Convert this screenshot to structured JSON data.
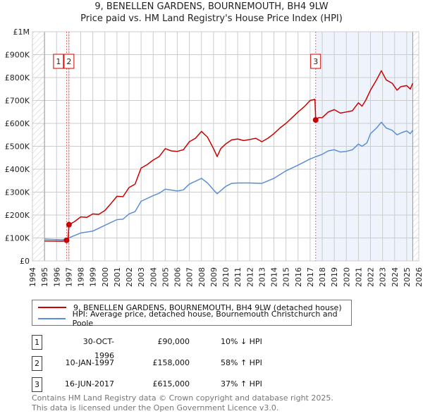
{
  "title_line1": "9, BENELLEN GARDENS, BOURNEMOUTH, BH4 9LW",
  "title_line2": "Price paid vs. HM Land Registry's House Price Index (HPI)",
  "chart_data": {
    "type": "line",
    "xlim": [
      1994,
      2026
    ],
    "ylim": [
      0,
      1000000
    ],
    "grid": true,
    "x_ticks": [
      "1994",
      "1995",
      "1996",
      "1997",
      "1998",
      "1999",
      "2000",
      "2001",
      "2002",
      "2003",
      "2004",
      "2005",
      "2006",
      "2007",
      "2008",
      "2009",
      "2010",
      "2011",
      "2012",
      "2013",
      "2014",
      "2015",
      "2016",
      "2017",
      "2018",
      "2019",
      "2020",
      "2021",
      "2022",
      "2023",
      "2024",
      "2025",
      "2026"
    ],
    "y_ticks": [
      {
        "value": 0,
        "label": "£0"
      },
      {
        "value": 100000,
        "label": "£100K"
      },
      {
        "value": 200000,
        "label": "£200K"
      },
      {
        "value": 300000,
        "label": "£300K"
      },
      {
        "value": 400000,
        "label": "£400K"
      },
      {
        "value": 500000,
        "label": "£500K"
      },
      {
        "value": 600000,
        "label": "£600K"
      },
      {
        "value": 700000,
        "label": "£700K"
      },
      {
        "value": 800000,
        "label": "£800K"
      },
      {
        "value": 900000,
        "label": "£900K"
      },
      {
        "value": 1000000,
        "label": "£1M"
      }
    ],
    "hatched_ranges": [
      [
        1994,
        1995
      ],
      [
        2025.5,
        2026
      ]
    ],
    "shaded_range": [
      2017.46,
      2025.5
    ],
    "series": [
      {
        "name": "9, BENELLEN GARDENS, BOURNEMOUTH, BH4 9LW (detached house)",
        "color": "#cc0000",
        "x": [
          1995,
          1996.5,
          1996.83,
          1996.95,
          1997.03,
          1997.5,
          1998,
          1998.5,
          1999,
          1999.5,
          2000,
          2000.5,
          2001,
          2001.5,
          2002,
          2002.5,
          2003,
          2003.5,
          2004,
          2004.5,
          2005,
          2005.5,
          2006,
          2006.5,
          2007,
          2007.5,
          2008,
          2008.5,
          2009,
          2009.3,
          2009.6,
          2010,
          2010.5,
          2011,
          2011.5,
          2012,
          2012.5,
          2013,
          2013.5,
          2014,
          2014.5,
          2015,
          2015.5,
          2016,
          2016.5,
          2017,
          2017.4,
          2017.46,
          2017.7,
          2018,
          2018.5,
          2019,
          2019.5,
          2020,
          2020.5,
          2021,
          2021.3,
          2021.6,
          2022,
          2022.5,
          2022.9,
          2023.3,
          2023.8,
          2024.2,
          2024.5,
          2025,
          2025.3,
          2025.5
        ],
        "y": [
          87000,
          86000,
          90000,
          92000,
          158000,
          172000,
          192000,
          190000,
          205000,
          203000,
          220000,
          250000,
          282000,
          280000,
          320000,
          335000,
          405000,
          420000,
          440000,
          455000,
          490000,
          480000,
          478000,
          485000,
          520000,
          535000,
          565000,
          540000,
          490000,
          455000,
          490000,
          510000,
          528000,
          532000,
          525000,
          530000,
          535000,
          520000,
          535000,
          555000,
          580000,
          600000,
          625000,
          650000,
          672000,
          700000,
          705000,
          615000,
          625000,
          625000,
          650000,
          660000,
          645000,
          650000,
          655000,
          690000,
          675000,
          700000,
          745000,
          790000,
          830000,
          790000,
          775000,
          745000,
          760000,
          765000,
          750000,
          775000
        ]
      },
      {
        "name": "HPI: Average price, detached house, Bournemouth Christchurch and Poole",
        "color": "#5b8fd4",
        "x": [
          1995,
          1996.5,
          1997,
          1998,
          1999,
          2000,
          2001,
          2001.5,
          2002,
          2002.5,
          2003,
          2004,
          2004.5,
          2005,
          2006,
          2006.5,
          2007,
          2008,
          2008.5,
          2009,
          2009.3,
          2010,
          2010.5,
          2011,
          2012,
          2013,
          2014,
          2015,
          2016,
          2017,
          2017.5,
          2018,
          2018.5,
          2019,
          2019.5,
          2020,
          2020.5,
          2021,
          2021.3,
          2021.7,
          2022,
          2022.5,
          2022.9,
          2023.3,
          2023.8,
          2024.2,
          2024.6,
          2025,
          2025.3,
          2025.5
        ],
        "y": [
          95000,
          92000,
          100000,
          122000,
          130000,
          155000,
          180000,
          182000,
          205000,
          215000,
          260000,
          285000,
          295000,
          313000,
          305000,
          310000,
          335000,
          360000,
          340000,
          310000,
          293000,
          325000,
          338000,
          340000,
          340000,
          338000,
          360000,
          393000,
          418000,
          445000,
          455000,
          465000,
          480000,
          485000,
          475000,
          478000,
          485000,
          510000,
          500000,
          515000,
          555000,
          580000,
          605000,
          580000,
          570000,
          550000,
          560000,
          567000,
          555000,
          570000
        ]
      }
    ],
    "sales": [
      {
        "num": "1",
        "x": 1996.83,
        "price": 90000,
        "date": "30-OCT-1996",
        "price_label": "£90,000",
        "hpi": "10% ↓ HPI"
      },
      {
        "num": "2",
        "x": 1997.03,
        "price": 158000,
        "date": "10-JAN-1997",
        "price_label": "£158,000",
        "hpi": "58% ↑ HPI"
      },
      {
        "num": "3",
        "x": 2017.46,
        "price": 615000,
        "date": "16-JUN-2017",
        "price_label": "£615,000",
        "hpi": "37% ↑ HPI"
      }
    ]
  },
  "footer_line1": "Contains HM Land Registry data © Crown copyright and database right 2025.",
  "footer_line2": "This data is licensed under the Open Government Licence v3.0."
}
